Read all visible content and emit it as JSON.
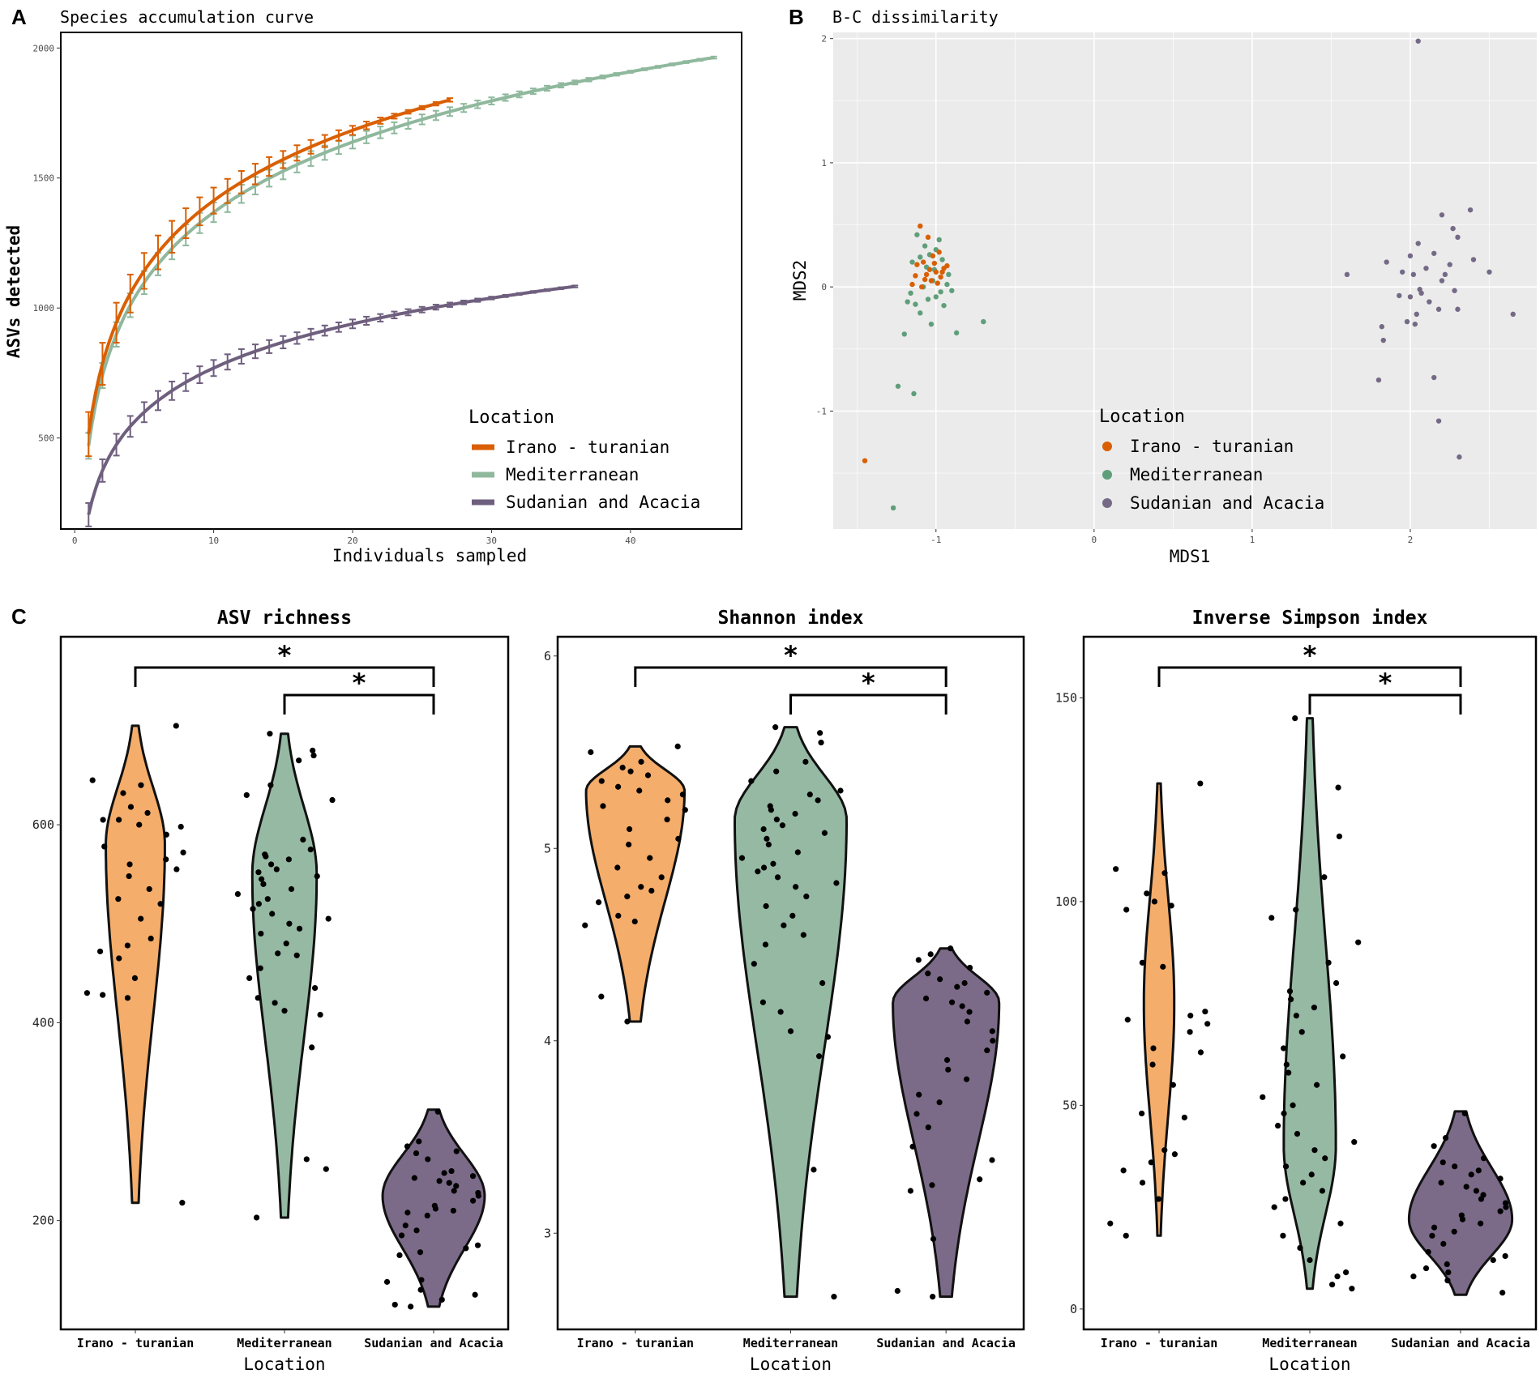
{
  "colors": {
    "irano_line": "#d95f02",
    "mediterranean_line": "#8fb89d",
    "sudanian_line": "#6f5f7e",
    "irano_violin": "#f4ad6a",
    "mediterranean_violin": "#96b9a3",
    "sudanian_violin": "#7b6b88",
    "irano_point": "#d95f02",
    "mediterranean_point": "#5f9e7a",
    "sudanian_point": "#756a86",
    "panel_bg": "#ebebeb"
  },
  "panels": {
    "a": {
      "letter": "A",
      "title": "Species accumulation curve",
      "xlabel": "Individuals sampled",
      "ylabel": "ASVs detected"
    },
    "b": {
      "letter": "B",
      "title": "B-C dissimilarity",
      "xlabel": "MDS1",
      "ylabel": "MDS2"
    },
    "c": {
      "letter": "C"
    }
  },
  "legend": {
    "title": "Location",
    "items": [
      "Irano - turanian",
      "Mediterranean",
      "Sudanian and Acacia"
    ]
  },
  "chart_data": [
    {
      "id": "accumulation",
      "type": "line",
      "title": "Species accumulation curve",
      "xlabel": "Individuals sampled",
      "ylabel": "ASVs detected",
      "xlim": [
        -1,
        48
      ],
      "ylim": [
        150,
        2060
      ],
      "xticks": [
        0,
        10,
        20,
        30,
        40
      ],
      "yticks": [
        500,
        1000,
        1500,
        2000
      ],
      "series": [
        {
          "name": "Irano - turanian",
          "n_max": 27,
          "a": 515,
          "b": 390,
          "err": 85
        },
        {
          "name": "Mediterranean",
          "n_max": 46,
          "a": 470,
          "b": 390,
          "err": 50
        },
        {
          "name": "Sudanian and Acacia",
          "n_max": 36,
          "a": 205,
          "b": 245,
          "err": 45
        }
      ]
    },
    {
      "id": "mds",
      "type": "scatter",
      "title": "B-C dissimilarity",
      "xlabel": "MDS1",
      "ylabel": "MDS2",
      "xlim": [
        -1.65,
        2.8
      ],
      "ylim": [
        -1.95,
        2.05
      ],
      "xticks": [
        -1,
        0,
        1,
        2
      ],
      "yticks": [
        -1,
        0,
        1,
        2
      ],
      "series": [
        {
          "name": "Irano - turanian",
          "points": [
            [
              -1.1,
              0.49
            ],
            [
              -1.05,
              0.4
            ],
            [
              -0.98,
              0.28
            ],
            [
              -1.02,
              0.25
            ],
            [
              -1.08,
              0.2
            ],
            [
              -0.95,
              0.15
            ],
            [
              -1.0,
              0.12
            ],
            [
              -1.12,
              0.18
            ],
            [
              -1.06,
              0.1
            ],
            [
              -0.97,
              0.08
            ],
            [
              -1.03,
              0.05
            ],
            [
              -1.09,
              0.0
            ],
            [
              -1.15,
              0.02
            ],
            [
              -0.93,
              0.17
            ],
            [
              -1.01,
              0.19
            ],
            [
              -1.04,
              0.14
            ],
            [
              -0.99,
              0.03
            ],
            [
              -0.96,
              0.12
            ],
            [
              -1.07,
              0.06
            ],
            [
              -1.13,
              0.09
            ],
            [
              -1.45,
              -1.4
            ]
          ]
        },
        {
          "name": "Mediterranean",
          "points": [
            [
              -1.12,
              0.42
            ],
            [
              -1.07,
              0.33
            ],
            [
              -0.98,
              0.38
            ],
            [
              -1.0,
              0.3
            ],
            [
              -1.04,
              0.26
            ],
            [
              -1.1,
              0.24
            ],
            [
              -1.15,
              0.2
            ],
            [
              -1.06,
              0.16
            ],
            [
              -0.96,
              0.22
            ],
            [
              -0.92,
              0.1
            ],
            [
              -1.02,
              0.05
            ],
            [
              -1.08,
              0.0
            ],
            [
              -1.16,
              -0.05
            ],
            [
              -1.18,
              -0.12
            ],
            [
              -1.13,
              -0.14
            ],
            [
              -1.05,
              -0.1
            ],
            [
              -0.97,
              -0.04
            ],
            [
              -0.9,
              -0.03
            ],
            [
              -1.0,
              -0.08
            ],
            [
              -1.1,
              -0.21
            ],
            [
              -1.03,
              -0.3
            ],
            [
              -0.95,
              -0.15
            ],
            [
              -0.87,
              -0.37
            ],
            [
              -1.2,
              -0.38
            ],
            [
              -0.7,
              -0.28
            ],
            [
              -1.14,
              -0.86
            ],
            [
              -1.24,
              -0.8
            ],
            [
              -1.27,
              -1.78
            ],
            [
              -1.01,
              0.14
            ],
            [
              -0.93,
              0.02
            ]
          ]
        },
        {
          "name": "Sudanian and Acacia",
          "points": [
            [
              2.05,
              1.98
            ],
            [
              2.38,
              0.62
            ],
            [
              2.2,
              0.58
            ],
            [
              2.27,
              0.47
            ],
            [
              2.05,
              0.35
            ],
            [
              2.3,
              0.4
            ],
            [
              2.15,
              0.27
            ],
            [
              2.0,
              0.25
            ],
            [
              2.4,
              0.22
            ],
            [
              1.85,
              0.2
            ],
            [
              2.25,
              0.18
            ],
            [
              2.5,
              0.12
            ],
            [
              2.1,
              0.15
            ],
            [
              2.02,
              0.1
            ],
            [
              1.6,
              0.1
            ],
            [
              1.95,
              0.12
            ],
            [
              2.2,
              0.05
            ],
            [
              2.28,
              -0.03
            ],
            [
              2.06,
              -0.02
            ],
            [
              2.0,
              -0.08
            ],
            [
              1.93,
              -0.07
            ],
            [
              2.12,
              -0.12
            ],
            [
              2.18,
              -0.18
            ],
            [
              2.3,
              -0.18
            ],
            [
              2.04,
              -0.22
            ],
            [
              1.98,
              -0.28
            ],
            [
              2.03,
              -0.3
            ],
            [
              1.82,
              -0.32
            ],
            [
              1.83,
              -0.43
            ],
            [
              2.65,
              -0.22
            ],
            [
              2.15,
              -0.73
            ],
            [
              1.8,
              -0.75
            ],
            [
              2.18,
              -1.08
            ],
            [
              2.31,
              -1.37
            ],
            [
              2.07,
              -0.05
            ],
            [
              2.22,
              0.1
            ]
          ]
        }
      ]
    },
    {
      "id": "asv_richness",
      "type": "violin",
      "title": "ASV richness",
      "xlabel": "Location",
      "ylim": [
        90,
        790
      ],
      "yticks": [
        200,
        400,
        600
      ],
      "categories": [
        "Irano - turanian",
        "Mediterranean",
        "Sudanian and Acacia"
      ],
      "groups": [
        {
          "range": [
            218,
            700
          ],
          "mode": 580,
          "width": 0.55,
          "points": [
            700,
            645,
            640,
            632,
            618,
            612,
            605,
            605,
            600,
            598,
            590,
            578,
            572,
            565,
            560,
            555,
            548,
            535,
            525,
            520,
            505,
            485,
            478,
            472,
            465,
            445,
            430,
            428,
            425,
            218
          ]
        },
        {
          "range": [
            203,
            692
          ],
          "mode": 550,
          "width": 0.6,
          "points": [
            692,
            675,
            670,
            665,
            640,
            630,
            625,
            585,
            575,
            570,
            568,
            565,
            560,
            555,
            552,
            548,
            545,
            540,
            535,
            530,
            525,
            520,
            515,
            510,
            505,
            500,
            495,
            490,
            480,
            470,
            468,
            455,
            445,
            435,
            425,
            420,
            412,
            408,
            375,
            262,
            252,
            203
          ]
        },
        {
          "range": [
            113,
            312
          ],
          "mode": 225,
          "width": 0.95,
          "points": [
            310,
            280,
            275,
            270,
            268,
            262,
            250,
            248,
            245,
            243,
            240,
            238,
            235,
            230,
            228,
            225,
            220,
            215,
            212,
            210,
            208,
            205,
            195,
            190,
            185,
            175,
            172,
            168,
            165,
            140,
            138,
            130,
            125,
            120,
            115,
            113
          ]
        }
      ],
      "brackets": [
        {
          "from": 0,
          "to": 2,
          "label": "*"
        },
        {
          "from": 1,
          "to": 2,
          "label": "*"
        }
      ]
    },
    {
      "id": "shannon",
      "type": "violin",
      "title": "Shannon index",
      "xlabel": "Location",
      "ylim": [
        2.5,
        6.1
      ],
      "yticks": [
        3,
        4,
        5,
        6
      ],
      "categories": [
        "Irano - turanian",
        "Mediterranean",
        "Sudanian and Acacia"
      ],
      "groups": [
        {
          "range": [
            4.1,
            5.53
          ],
          "mode": 5.3,
          "width": 0.88,
          "points": [
            5.53,
            5.5,
            5.45,
            5.42,
            5.4,
            5.38,
            5.35,
            5.32,
            5.3,
            5.28,
            5.25,
            5.22,
            5.2,
            5.15,
            5.1,
            5.05,
            5.02,
            4.95,
            4.9,
            4.85,
            4.8,
            4.78,
            4.75,
            4.72,
            4.65,
            4.62,
            4.6,
            4.23,
            4.1
          ]
        },
        {
          "range": [
            2.67,
            5.63
          ],
          "mode": 5.15,
          "width": 1.0,
          "points": [
            5.63,
            5.6,
            5.55,
            5.45,
            5.4,
            5.35,
            5.3,
            5.28,
            5.25,
            5.22,
            5.2,
            5.18,
            5.15,
            5.12,
            5.1,
            5.08,
            5.05,
            5.02,
            4.98,
            4.95,
            4.92,
            4.9,
            4.88,
            4.85,
            4.82,
            4.8,
            4.75,
            4.7,
            4.65,
            4.6,
            4.55,
            4.5,
            4.4,
            4.3,
            4.2,
            4.15,
            4.05,
            4.02,
            3.92,
            3.33,
            2.67
          ]
        },
        {
          "range": [
            2.67,
            4.48
          ],
          "mode": 4.2,
          "width": 0.95,
          "points": [
            4.48,
            4.45,
            4.42,
            4.38,
            4.35,
            4.32,
            4.3,
            4.28,
            4.25,
            4.22,
            4.2,
            4.18,
            4.15,
            4.1,
            4.05,
            4.0,
            3.95,
            3.9,
            3.85,
            3.8,
            3.72,
            3.68,
            3.62,
            3.55,
            3.45,
            3.38,
            3.28,
            3.25,
            3.22,
            2.97,
            2.7,
            2.67
          ]
        }
      ],
      "brackets": [
        {
          "from": 0,
          "to": 2,
          "label": "*"
        },
        {
          "from": 1,
          "to": 2,
          "label": "*"
        }
      ]
    },
    {
      "id": "inverse_simpson",
      "type": "violin",
      "title": "Inverse Simpson index",
      "xlabel": "Location",
      "ylim": [
        -5,
        165
      ],
      "yticks": [
        0,
        50,
        100,
        150
      ],
      "categories": [
        "Irano - turanian",
        "Mediterranean",
        "Sudanian and Acacia"
      ],
      "groups": [
        {
          "range": [
            18,
            129
          ],
          "mode": 75,
          "width": 0.28,
          "points": [
            129,
            108,
            107,
            102,
            100,
            99,
            98,
            85,
            84,
            73,
            72,
            71,
            70,
            68,
            64,
            63,
            60,
            55,
            48,
            47,
            39,
            38,
            36,
            34,
            31,
            27,
            21,
            18
          ]
        },
        {
          "range": [
            5,
            145
          ],
          "mode": 40,
          "width": 0.48,
          "points": [
            145,
            128,
            116,
            106,
            98,
            96,
            90,
            85,
            80,
            78,
            76,
            74,
            72,
            68,
            64,
            62,
            60,
            58,
            55,
            52,
            50,
            48,
            45,
            43,
            41,
            39,
            37,
            35,
            33,
            31,
            29,
            27,
            25,
            21,
            18,
            15,
            12,
            9,
            8,
            6,
            5
          ]
        },
        {
          "range": [
            3.5,
            48.5
          ],
          "mode": 22,
          "width": 0.95,
          "points": [
            48,
            42,
            40,
            37,
            36,
            35,
            34,
            33,
            32,
            31,
            30,
            29,
            28,
            27,
            26,
            25,
            24,
            23,
            22,
            21,
            20,
            19,
            18,
            16,
            14,
            13,
            12,
            11,
            10,
            9,
            8,
            7,
            4
          ]
        }
      ],
      "brackets": [
        {
          "from": 0,
          "to": 2,
          "label": "*"
        },
        {
          "from": 1,
          "to": 2,
          "label": "*"
        }
      ]
    }
  ]
}
